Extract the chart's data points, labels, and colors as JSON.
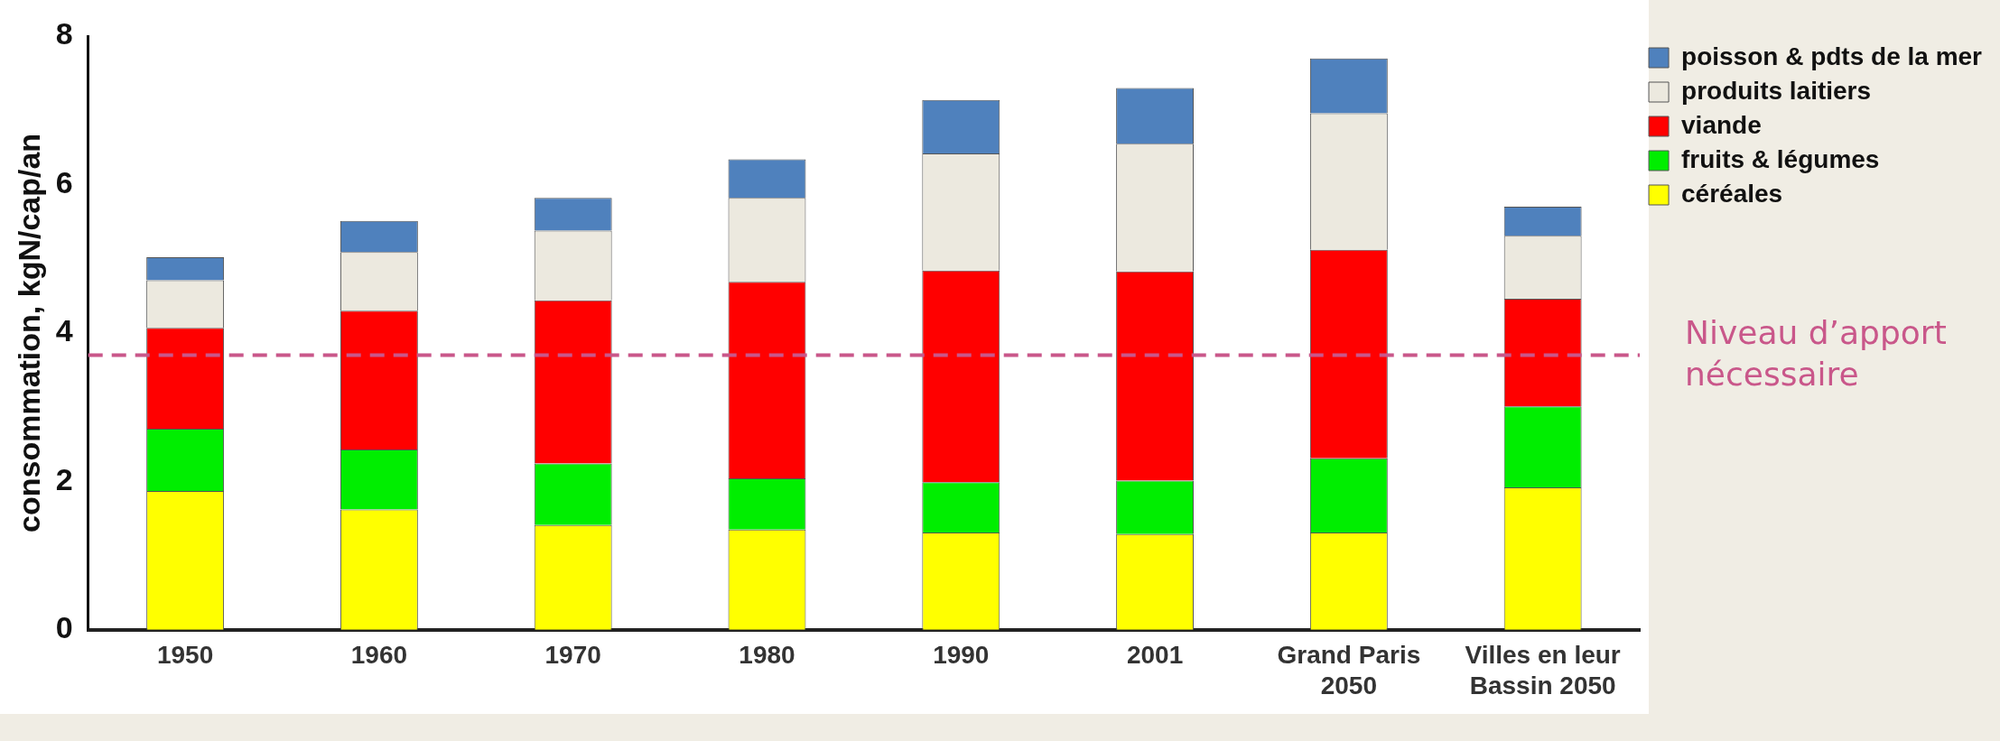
{
  "chart_data": {
    "type": "bar",
    "stacked": true,
    "ylabel": "consommation, kgN/cap/an",
    "categories": [
      "1950",
      "1960",
      "1970",
      "1980",
      "1990",
      "2001",
      "Grand Paris 2050",
      "Villes en leur Bassin 2050"
    ],
    "series": [
      {
        "name": "céréales",
        "color": "#ffff00",
        "values": [
          1.87,
          1.62,
          1.41,
          1.35,
          1.31,
          1.29,
          1.31,
          1.92
        ]
      },
      {
        "name": "fruits & légumes",
        "color": "#00ee00",
        "values": [
          0.84,
          0.81,
          0.83,
          0.69,
          0.68,
          0.72,
          1.0,
          1.09
        ]
      },
      {
        "name": "viande",
        "color": "#ff0000",
        "values": [
          1.36,
          1.87,
          2.2,
          2.65,
          2.85,
          2.82,
          2.81,
          1.45
        ]
      },
      {
        "name": "produits laitiers",
        "color": "#ece9df",
        "values": [
          0.64,
          0.79,
          0.94,
          1.13,
          1.58,
          1.72,
          1.84,
          0.85
        ]
      },
      {
        "name": "poisson & pdts de la mer",
        "color": "#4f81bd",
        "values": [
          0.31,
          0.42,
          0.44,
          0.52,
          0.72,
          0.75,
          0.74,
          0.39
        ]
      }
    ],
    "ylim": [
      0,
      8
    ],
    "yticks": [
      0,
      2,
      4,
      6,
      8
    ],
    "grid": false,
    "legend": "top right",
    "ref_lines": [
      {
        "axis": "y",
        "value": 3.7,
        "label": "Niveau d’apport nécessaire",
        "color": "#c9578a",
        "line_style": "dashed"
      }
    ]
  }
}
